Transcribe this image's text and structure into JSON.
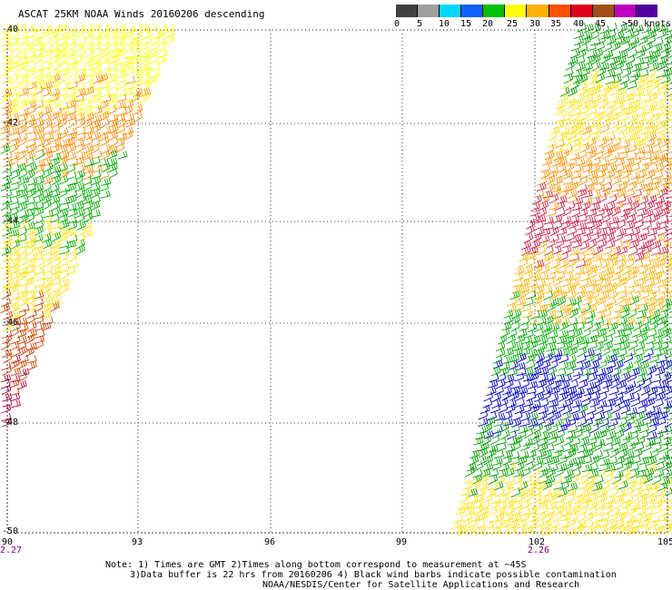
{
  "title": "ASCAT 25KM NOAA Winds 20160206 descending",
  "colorbar": {
    "labels": [
      "0",
      "5",
      "10",
      "15",
      "20",
      "25",
      "30",
      "35",
      "40",
      "45",
      ">50 knots"
    ],
    "colors": [
      "#404040",
      "#9e9e9e",
      "#00d8ff",
      "#1060ff",
      "#00c000",
      "#ffff00",
      "#ffb000",
      "#ff5000",
      "#e0001c",
      "#a05018",
      "#c000c0",
      "#5000a0"
    ]
  },
  "axes": {
    "lat_labels": [
      "-40",
      "-42",
      "-44",
      "-46",
      "-48",
      "-50"
    ],
    "lon_labels": [
      "90",
      "93",
      "96",
      "99",
      "102",
      "105"
    ],
    "time_labels": [
      "2.27",
      "2.26"
    ]
  },
  "notes": [
    "Note: 1) Times are GMT 2)Times along bottom correspond to measurement at ~45S",
    "3)Data buffer is 22 hrs from 20160206 4) Black wind barbs indicate possible contamination",
    "NOAA/NESDIS/Center for Satellite Applications and Research"
  ],
  "swaths": [
    {
      "name": "west-swath",
      "colors_top_to_bottom": [
        "#ffff00",
        "#ff8a00",
        "#00b000",
        "#ffe000",
        "#d04000",
        "#b00040"
      ]
    },
    {
      "name": "east-swath",
      "colors_top_to_bottom": [
        "#00a000",
        "#ffe000",
        "#ff9000",
        "#d0204a",
        "#ffb000",
        "#00b000",
        "#0000d0",
        "#00a000",
        "#ffe000"
      ]
    }
  ]
}
